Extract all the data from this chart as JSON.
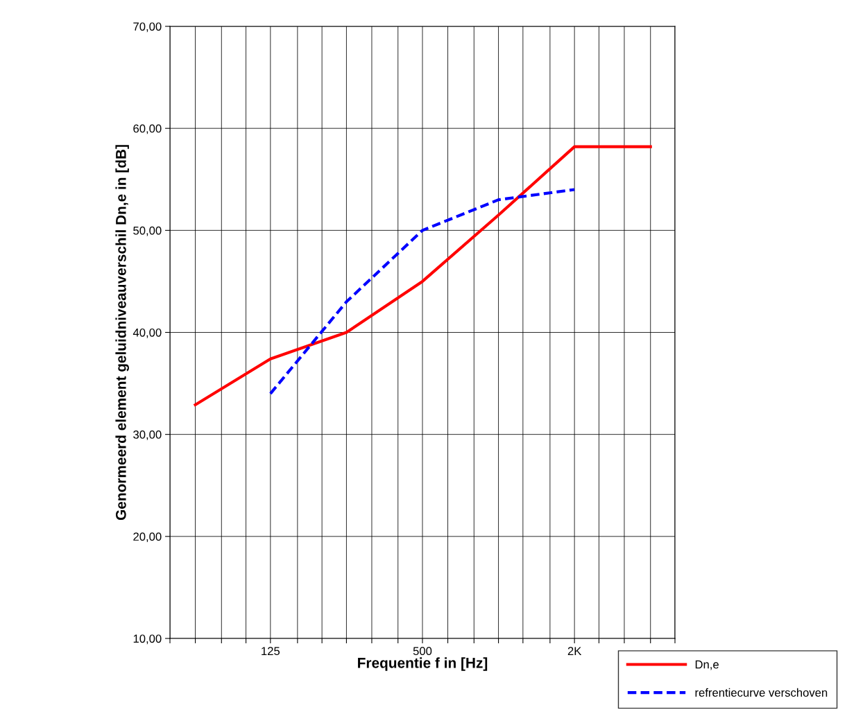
{
  "chart_data": {
    "type": "line",
    "xlabel": "Frequentie f in [Hz]",
    "ylabel": "Genormeerd element geluidniveauverschil Dn,e in [dB]",
    "log": "x",
    "grid": true,
    "legend": "bottom right",
    "marker": "none",
    "xlim": [
      50,
      5000
    ],
    "xticks": [
      {
        "value": 50,
        "label": null
      },
      {
        "value": 63,
        "label": null
      },
      {
        "value": 80,
        "label": null
      },
      {
        "value": 100,
        "label": null
      },
      {
        "value": 125,
        "label": "125"
      },
      {
        "value": 160,
        "label": null
      },
      {
        "value": 200,
        "label": null
      },
      {
        "value": 250,
        "label": null
      },
      {
        "value": 315,
        "label": null
      },
      {
        "value": 400,
        "label": null
      },
      {
        "value": 500,
        "label": "500"
      },
      {
        "value": 630,
        "label": null
      },
      {
        "value": 800,
        "label": null
      },
      {
        "value": 1000,
        "label": null
      },
      {
        "value": 1250,
        "label": null
      },
      {
        "value": 1600,
        "label": null
      },
      {
        "value": 2000,
        "label": "2K"
      },
      {
        "value": 2500,
        "label": null
      },
      {
        "value": 3150,
        "label": null
      },
      {
        "value": 4000,
        "label": null
      },
      {
        "value": 5000,
        "label": null
      }
    ],
    "ylim": [
      10,
      70
    ],
    "yticks": [
      {
        "value": 10,
        "label": "10,00"
      },
      {
        "value": 20,
        "label": "20,00"
      },
      {
        "value": 30,
        "label": "30,00"
      },
      {
        "value": 40,
        "label": "40,00"
      },
      {
        "value": 50,
        "label": "50,00"
      },
      {
        "value": 60,
        "label": "60,00"
      },
      {
        "value": 70,
        "label": "70,00"
      }
    ],
    "series": [
      {
        "name": "Dn,e",
        "color": "#ff0000",
        "line_style": "solid",
        "x": [
          63,
          125,
          250,
          500,
          1000,
          2000,
          4000
        ],
        "values": [
          32.9,
          37.4,
          40.0,
          45.0,
          51.5,
          58.2,
          58.2
        ]
      },
      {
        "name": "refrentiecurve verschoven",
        "color": "#0000ff",
        "line_style": "dashed",
        "x": [
          125,
          250,
          500,
          1000,
          2000
        ],
        "values": [
          34,
          43,
          50,
          53,
          54
        ]
      }
    ]
  }
}
